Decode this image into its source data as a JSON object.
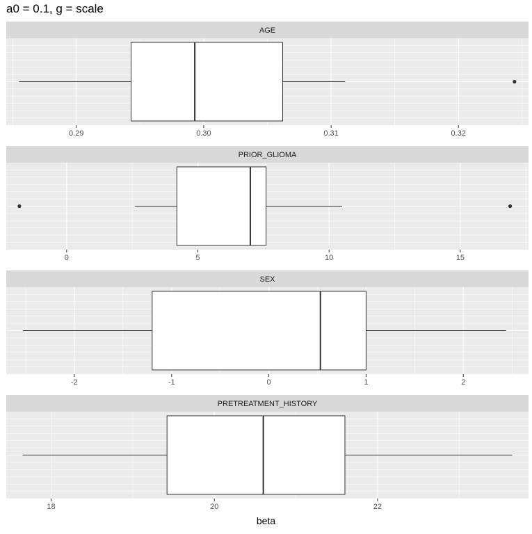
{
  "title": "a0 = 0.1, g = scale",
  "chart_data": [
    {
      "type": "boxplot",
      "facet": "AGE",
      "x_ticks": [
        0.29,
        0.3,
        0.31,
        0.32
      ],
      "x_tick_labels": [
        "0.29",
        "0.30",
        "0.31",
        "0.32"
      ],
      "xlim": [
        0.2845,
        0.3255
      ],
      "whisker_low": 0.2855,
      "q1": 0.2943,
      "median": 0.2993,
      "q3": 0.3062,
      "whisker_high": 0.3111,
      "outliers": [
        0.3244
      ],
      "grid": true
    },
    {
      "type": "boxplot",
      "facet": "PRIOR_GLIOMA",
      "x_ticks": [
        0,
        5,
        10,
        15
      ],
      "x_tick_labels": [
        "0",
        "5",
        "10",
        "15"
      ],
      "xlim": [
        -2.3,
        17.6
      ],
      "whisker_low": 2.6,
      "q1": 4.2,
      "median": 7.0,
      "q3": 7.6,
      "whisker_high": 10.5,
      "outliers": [
        -1.8,
        16.9
      ],
      "grid": true
    },
    {
      "type": "boxplot",
      "facet": "SEX",
      "x_ticks": [
        -2,
        -1,
        0,
        1,
        2
      ],
      "x_tick_labels": [
        "-2",
        "-1",
        "0",
        "1",
        "2"
      ],
      "xlim": [
        -2.7,
        2.67
      ],
      "whisker_low": -2.53,
      "q1": -1.2,
      "median": 0.53,
      "q3": 1.0,
      "whisker_high": 2.44,
      "outliers": [],
      "grid": true
    },
    {
      "type": "boxplot",
      "facet": "PRETREATMENT_HISTORY",
      "x_ticks": [
        18,
        20,
        22
      ],
      "x_tick_labels": [
        "18",
        "20",
        "22"
      ],
      "xlim": [
        17.45,
        23.85
      ],
      "whisker_low": 17.65,
      "q1": 19.42,
      "median": 20.6,
      "q3": 21.6,
      "whisker_high": 23.65,
      "outliers": [],
      "grid": true
    }
  ],
  "xlabel": "beta"
}
